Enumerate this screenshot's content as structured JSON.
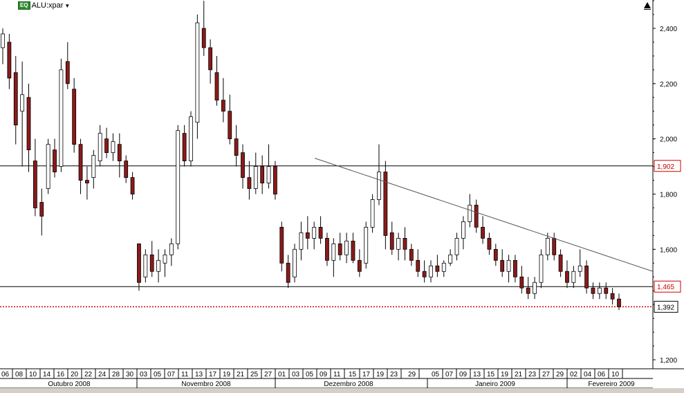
{
  "header": {
    "badge": "EQ",
    "symbol": "ALU:xpar",
    "dropdown_icon": "caret-down-icon",
    "corner_icon": "triangle-up-icon"
  },
  "colors": {
    "up_candle": "#ffffff",
    "down_candle": "#8b1a1a",
    "wick": "#000000",
    "current_price_line": "#cc0000",
    "price_tag_text": "#cc0000"
  },
  "chart_data": {
    "type": "candlestick",
    "y_ticks": [
      "2,400",
      "2,200",
      "2,000",
      "1,800",
      "1,600",
      "1,200"
    ],
    "ylim": [
      1.15,
      2.53
    ],
    "x_day_labels": [
      "06",
      "08",
      "10",
      "14",
      "16",
      "20",
      "22",
      "24",
      "28",
      "30",
      "03",
      "05",
      "07",
      "11",
      "13",
      "17",
      "19",
      "21",
      "25",
      "27",
      "01",
      "03",
      "05",
      "09",
      "11",
      "15",
      "17",
      "19",
      "23",
      "29",
      "05",
      "07",
      "09",
      "13",
      "15",
      "19",
      "21",
      "23",
      "27",
      "29",
      "02",
      "04",
      "06",
      "10"
    ],
    "month_labels": [
      "Outubro 2008",
      "Novembro 2008",
      "Dezembro 2008",
      "Janeiro 2009",
      "Fevereiro 2009"
    ],
    "horizontal_levels": [
      {
        "value": 1.902,
        "label": "1,902"
      },
      {
        "value": 1.465,
        "label": "1,465"
      }
    ],
    "current_price": {
      "value": 1.392,
      "label": "1,392"
    },
    "trendline": {
      "from": {
        "date": "09 Dez 2008",
        "value": 1.93
      },
      "to": {
        "date": "10 Fev 2009",
        "value": 1.52
      }
    },
    "candles_ohlc": [
      [
        2.33,
        2.4,
        2.27,
        2.38
      ],
      [
        2.35,
        2.38,
        2.18,
        2.22
      ],
      [
        2.24,
        2.3,
        1.98,
        2.05
      ],
      [
        2.1,
        2.28,
        1.9,
        2.16
      ],
      [
        2.15,
        2.2,
        1.88,
        1.96
      ],
      [
        1.92,
        2.0,
        1.72,
        1.75
      ],
      [
        1.77,
        1.82,
        1.65,
        1.72
      ],
      [
        1.82,
        2.0,
        1.8,
        1.98
      ],
      [
        1.96,
        2.0,
        1.86,
        1.88
      ],
      [
        1.9,
        2.29,
        1.88,
        2.25
      ],
      [
        2.28,
        2.35,
        2.18,
        2.2
      ],
      [
        2.18,
        2.22,
        1.95,
        1.98
      ],
      [
        1.98,
        2.0,
        1.8,
        1.85
      ],
      [
        1.85,
        1.9,
        1.78,
        1.84
      ],
      [
        1.86,
        1.96,
        1.82,
        1.94
      ],
      [
        1.92,
        2.05,
        1.9,
        2.02
      ],
      [
        2.0,
        2.04,
        1.93,
        1.95
      ],
      [
        1.95,
        2.02,
        1.92,
        1.99
      ],
      [
        1.98,
        2.02,
        1.86,
        1.92
      ],
      [
        1.92,
        1.94,
        1.84,
        1.86
      ],
      [
        1.86,
        1.88,
        1.78,
        1.8
      ],
      [
        1.62,
        1.62,
        1.45,
        1.48
      ],
      [
        1.5,
        1.6,
        1.48,
        1.58
      ],
      [
        1.58,
        1.63,
        1.5,
        1.52
      ],
      [
        1.52,
        1.6,
        1.48,
        1.56
      ],
      [
        1.55,
        1.6,
        1.5,
        1.58
      ],
      [
        1.58,
        1.64,
        1.54,
        1.62
      ],
      [
        1.62,
        2.05,
        1.6,
        2.03
      ],
      [
        2.02,
        2.05,
        1.9,
        1.92
      ],
      [
        1.92,
        2.1,
        1.9,
        2.08
      ],
      [
        2.06,
        2.45,
        2.0,
        2.42
      ],
      [
        2.4,
        2.5,
        2.3,
        2.33
      ],
      [
        2.33,
        2.36,
        2.2,
        2.25
      ],
      [
        2.24,
        2.3,
        2.12,
        2.14
      ],
      [
        2.14,
        2.22,
        2.06,
        2.1
      ],
      [
        2.1,
        2.16,
        1.98,
        2.0
      ],
      [
        2.0,
        2.05,
        1.9,
        1.94
      ],
      [
        1.95,
        1.98,
        1.82,
        1.86
      ],
      [
        1.86,
        1.92,
        1.78,
        1.82
      ],
      [
        1.82,
        1.95,
        1.8,
        1.9
      ],
      [
        1.9,
        1.94,
        1.8,
        1.84
      ],
      [
        1.84,
        1.98,
        1.82,
        1.9
      ],
      [
        1.9,
        1.92,
        1.78,
        1.8
      ],
      [
        1.68,
        1.7,
        1.52,
        1.55
      ],
      [
        1.55,
        1.58,
        1.46,
        1.48
      ],
      [
        1.5,
        1.62,
        1.48,
        1.6
      ],
      [
        1.6,
        1.7,
        1.56,
        1.66
      ],
      [
        1.66,
        1.72,
        1.6,
        1.64
      ],
      [
        1.64,
        1.7,
        1.6,
        1.68
      ],
      [
        1.68,
        1.72,
        1.62,
        1.64
      ],
      [
        1.64,
        1.66,
        1.54,
        1.56
      ],
      [
        1.56,
        1.64,
        1.5,
        1.62
      ],
      [
        1.62,
        1.66,
        1.56,
        1.58
      ],
      [
        1.58,
        1.66,
        1.55,
        1.63
      ],
      [
        1.63,
        1.66,
        1.55,
        1.56
      ],
      [
        1.56,
        1.6,
        1.5,
        1.52
      ],
      [
        1.55,
        1.7,
        1.53,
        1.68
      ],
      [
        1.68,
        1.8,
        1.66,
        1.78
      ],
      [
        1.78,
        1.98,
        1.76,
        1.88
      ],
      [
        1.88,
        1.92,
        1.6,
        1.65
      ],
      [
        1.66,
        1.7,
        1.58,
        1.6
      ],
      [
        1.6,
        1.66,
        1.56,
        1.64
      ],
      [
        1.64,
        1.68,
        1.56,
        1.6
      ],
      [
        1.6,
        1.62,
        1.54,
        1.56
      ],
      [
        1.56,
        1.6,
        1.5,
        1.52
      ],
      [
        1.52,
        1.56,
        1.48,
        1.5
      ],
      [
        1.5,
        1.56,
        1.48,
        1.54
      ],
      [
        1.54,
        1.58,
        1.5,
        1.52
      ],
      [
        1.52,
        1.56,
        1.5,
        1.55
      ],
      [
        1.55,
        1.6,
        1.54,
        1.58
      ],
      [
        1.58,
        1.66,
        1.56,
        1.64
      ],
      [
        1.64,
        1.72,
        1.6,
        1.7
      ],
      [
        1.7,
        1.8,
        1.68,
        1.76
      ],
      [
        1.76,
        1.78,
        1.66,
        1.68
      ],
      [
        1.68,
        1.72,
        1.62,
        1.64
      ],
      [
        1.64,
        1.66,
        1.58,
        1.6
      ],
      [
        1.6,
        1.62,
        1.54,
        1.56
      ],
      [
        1.56,
        1.6,
        1.5,
        1.52
      ],
      [
        1.52,
        1.58,
        1.48,
        1.56
      ],
      [
        1.56,
        1.58,
        1.48,
        1.5
      ],
      [
        1.5,
        1.54,
        1.44,
        1.46
      ],
      [
        1.46,
        1.5,
        1.42,
        1.44
      ],
      [
        1.44,
        1.5,
        1.42,
        1.48
      ],
      [
        1.48,
        1.6,
        1.46,
        1.58
      ],
      [
        1.58,
        1.66,
        1.56,
        1.64
      ],
      [
        1.64,
        1.66,
        1.56,
        1.58
      ],
      [
        1.58,
        1.6,
        1.5,
        1.52
      ],
      [
        1.52,
        1.56,
        1.46,
        1.48
      ],
      [
        1.48,
        1.54,
        1.46,
        1.52
      ],
      [
        1.52,
        1.6,
        1.5,
        1.54
      ],
      [
        1.54,
        1.56,
        1.44,
        1.46
      ],
      [
        1.46,
        1.48,
        1.42,
        1.44
      ],
      [
        1.44,
        1.48,
        1.42,
        1.46
      ],
      [
        1.46,
        1.48,
        1.42,
        1.44
      ],
      [
        1.44,
        1.46,
        1.4,
        1.42
      ],
      [
        1.42,
        1.44,
        1.38,
        1.392
      ]
    ]
  }
}
